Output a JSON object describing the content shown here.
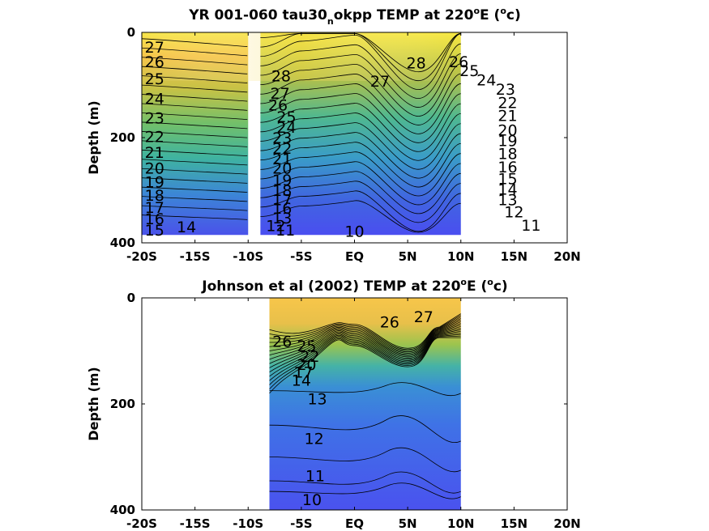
{
  "chart_data": [
    {
      "type": "contour",
      "title": {
        "prefix": "YR 001-060 tau30",
        "subscript": "n",
        "middle": "okpp TEMP at 220",
        "degree_sup": "o",
        "unit_letter": "E (",
        "unit_sup": "o",
        "unit_tail": "c)"
      },
      "ylabel": "Depth (m)",
      "xlim": [
        -20,
        20
      ],
      "ylim": [
        0,
        400
      ],
      "y_reversed": true,
      "data_xrange": [
        -20,
        10
      ],
      "data_depth_max": 385,
      "masked_x": [
        -10,
        -9
      ],
      "x_ticks": [
        {
          "value": -20,
          "label": "-20S"
        },
        {
          "value": -15,
          "label": "-15S"
        },
        {
          "value": -10,
          "label": "-10S"
        },
        {
          "value": -5,
          "label": "-5S"
        },
        {
          "value": 0,
          "label": "EQ"
        },
        {
          "value": 5,
          "label": "5N"
        },
        {
          "value": 10,
          "label": "10N"
        },
        {
          "value": 15,
          "label": "15N"
        },
        {
          "value": 20,
          "label": "20N"
        }
      ],
      "y_ticks": [
        {
          "value": 0,
          "label": "0"
        },
        {
          "value": 200,
          "label": "200"
        },
        {
          "value": 400,
          "label": "400"
        }
      ],
      "contour_labels": [
        {
          "x": -18.8,
          "y": 28,
          "label": "27"
        },
        {
          "x": -18.8,
          "y": 55,
          "label": "26"
        },
        {
          "x": -18.8,
          "y": 88,
          "label": "25"
        },
        {
          "x": -18.8,
          "y": 125,
          "label": "24"
        },
        {
          "x": -18.8,
          "y": 162,
          "label": "23"
        },
        {
          "x": -18.8,
          "y": 198,
          "label": "22"
        },
        {
          "x": -18.8,
          "y": 228,
          "label": "21"
        },
        {
          "x": -18.8,
          "y": 258,
          "label": "20"
        },
        {
          "x": -18.8,
          "y": 284,
          "label": "19"
        },
        {
          "x": -18.8,
          "y": 309,
          "label": "18"
        },
        {
          "x": -18.8,
          "y": 332,
          "label": "17"
        },
        {
          "x": -18.8,
          "y": 354,
          "label": "16"
        },
        {
          "x": -18.8,
          "y": 375,
          "label": "15"
        },
        {
          "x": -15.8,
          "y": 369,
          "label": "14"
        },
        {
          "x": -6.9,
          "y": 82,
          "label": "28"
        },
        {
          "x": -7.0,
          "y": 115,
          "label": "27"
        },
        {
          "x": -7.2,
          "y": 138,
          "label": "26"
        },
        {
          "x": -6.4,
          "y": 160,
          "label": "25"
        },
        {
          "x": -6.4,
          "y": 180,
          "label": "24"
        },
        {
          "x": -6.8,
          "y": 200,
          "label": "23"
        },
        {
          "x": -6.8,
          "y": 220,
          "label": "22"
        },
        {
          "x": -6.8,
          "y": 240,
          "label": "21"
        },
        {
          "x": -6.8,
          "y": 258,
          "label": "20"
        },
        {
          "x": -6.8,
          "y": 280,
          "label": "19"
        },
        {
          "x": -6.8,
          "y": 300,
          "label": "18"
        },
        {
          "x": -6.8,
          "y": 318,
          "label": "17"
        },
        {
          "x": -6.8,
          "y": 334,
          "label": "16"
        },
        {
          "x": -6.8,
          "y": 352,
          "label": "13"
        },
        {
          "x": -7.4,
          "y": 367,
          "label": "12"
        },
        {
          "x": -6.5,
          "y": 375,
          "label": "11"
        },
        {
          "x": 0.0,
          "y": 378,
          "label": "10"
        },
        {
          "x": 2.4,
          "y": 92,
          "label": "27"
        },
        {
          "x": 5.8,
          "y": 58,
          "label": "28"
        },
        {
          "x": 9.8,
          "y": 55,
          "label": "26"
        },
        {
          "x": 10.8,
          "y": 72,
          "label": "25"
        },
        {
          "x": 12.4,
          "y": 90,
          "label": "24"
        },
        {
          "x": 14.2,
          "y": 108,
          "label": "23"
        },
        {
          "x": 14.4,
          "y": 133,
          "label": "22"
        },
        {
          "x": 14.4,
          "y": 158,
          "label": "21"
        },
        {
          "x": 14.4,
          "y": 185,
          "label": "20"
        },
        {
          "x": 14.4,
          "y": 205,
          "label": "19"
        },
        {
          "x": 14.4,
          "y": 230,
          "label": "18"
        },
        {
          "x": 14.4,
          "y": 255,
          "label": "16"
        },
        {
          "x": 14.4,
          "y": 278,
          "label": "15"
        },
        {
          "x": 14.4,
          "y": 298,
          "label": "14"
        },
        {
          "x": 14.4,
          "y": 318,
          "label": "13"
        },
        {
          "x": 15.0,
          "y": 341,
          "label": "12"
        },
        {
          "x": 16.6,
          "y": 366,
          "label": "11"
        }
      ]
    },
    {
      "type": "contour",
      "title": {
        "prefix": "Johnson et al (2002) TEMP at 220",
        "degree_sup": "o",
        "unit_letter": "E (",
        "unit_sup": "o",
        "unit_tail": "c)"
      },
      "ylabel": "Depth (m)",
      "xlim": [
        -20,
        20
      ],
      "ylim": [
        0,
        400
      ],
      "y_reversed": true,
      "data_xrange": [
        -8,
        10
      ],
      "x_ticks": [
        {
          "value": -20,
          "label": "-20S"
        },
        {
          "value": -15,
          "label": "-15S"
        },
        {
          "value": -10,
          "label": "-10S"
        },
        {
          "value": -5,
          "label": "-5S"
        },
        {
          "value": 0,
          "label": "EQ"
        },
        {
          "value": 5,
          "label": "5N"
        },
        {
          "value": 10,
          "label": "10N"
        },
        {
          "value": 15,
          "label": "15N"
        },
        {
          "value": 20,
          "label": "20N"
        }
      ],
      "y_ticks": [
        {
          "value": 0,
          "label": "0"
        },
        {
          "value": 200,
          "label": "200"
        },
        {
          "value": 400,
          "label": "400"
        }
      ],
      "contour_labels": [
        {
          "x": 3.3,
          "y": 45,
          "label": "26"
        },
        {
          "x": 6.5,
          "y": 35,
          "label": "27"
        },
        {
          "x": -6.8,
          "y": 82,
          "label": "26"
        },
        {
          "x": -4.5,
          "y": 90,
          "label": "25"
        },
        {
          "x": -4.2,
          "y": 110,
          "label": "22"
        },
        {
          "x": -4.5,
          "y": 125,
          "label": "20"
        },
        {
          "x": -4.8,
          "y": 140,
          "label": "17"
        },
        {
          "x": -5.0,
          "y": 155,
          "label": "14"
        },
        {
          "x": -3.5,
          "y": 190,
          "label": "13"
        },
        {
          "x": -3.8,
          "y": 265,
          "label": "12"
        },
        {
          "x": -3.7,
          "y": 335,
          "label": "11"
        },
        {
          "x": -4.0,
          "y": 380,
          "label": "10"
        }
      ]
    }
  ]
}
